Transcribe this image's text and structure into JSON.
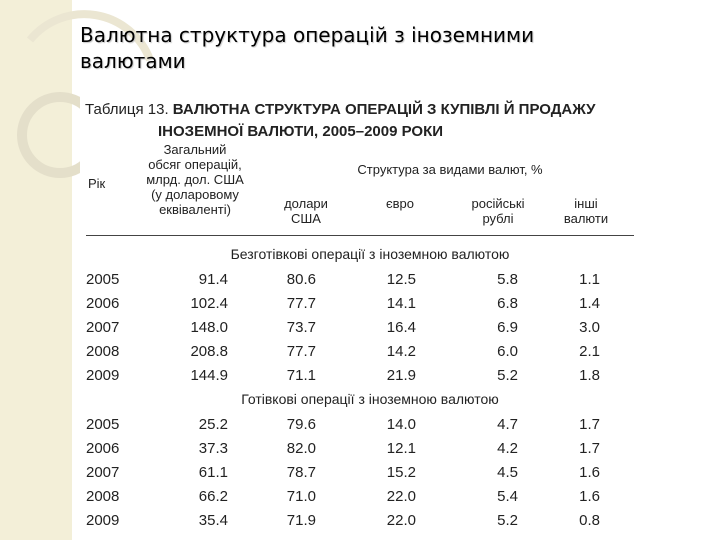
{
  "slide": {
    "title_lines": [
      "Валютна структура операцій з іноземними",
      "валютами"
    ]
  },
  "table": {
    "label": "Таблиця 13.",
    "caption_lines": [
      "ВАЛЮТНА СТРУКТУРА ОПЕРАЦІЙ З КУПІВЛІ Й ПРОДАЖУ",
      "ІНОЗЕМНОЇ ВАЛЮТИ, 2005–2009 РОКИ"
    ],
    "header": {
      "year": "Рік",
      "total_lines": [
        "Загальний",
        "обсяг операцій,",
        "млрд. дол. США",
        "(у доларовому",
        "еквіваленті)"
      ],
      "structure": "Структура за видами валют, %",
      "usd_lines": [
        "долари",
        "США"
      ],
      "eur": "євро",
      "rub_lines": [
        "російські",
        "рублі"
      ],
      "other_lines": [
        "інші",
        "валюти"
      ]
    },
    "sections": [
      {
        "title": "Безготівкові операції з іноземною валютою",
        "rows": [
          [
            "2005",
            "91.4",
            "80.6",
            "12.5",
            "5.8",
            "1.1"
          ],
          [
            "2006",
            "102.4",
            "77.7",
            "14.1",
            "6.8",
            "1.4"
          ],
          [
            "2007",
            "148.0",
            "73.7",
            "16.4",
            "6.9",
            "3.0"
          ],
          [
            "2008",
            "208.8",
            "77.7",
            "14.2",
            "6.0",
            "2.1"
          ],
          [
            "2009",
            "144.9",
            "71.1",
            "21.9",
            "5.2",
            "1.8"
          ]
        ]
      },
      {
        "title": "Готівкові операції з іноземною валютою",
        "rows": [
          [
            "2005",
            "25.2",
            "79.6",
            "14.0",
            "4.7",
            "1.7"
          ],
          [
            "2006",
            "37.3",
            "82.0",
            "12.1",
            "4.2",
            "1.7"
          ],
          [
            "2007",
            "61.1",
            "78.7",
            "15.2",
            "4.5",
            "1.6"
          ],
          [
            "2008",
            "66.2",
            "71.0",
            "22.0",
            "5.4",
            "1.6"
          ],
          [
            "2009",
            "35.4",
            "71.9",
            "22.0",
            "5.2",
            "0.8"
          ]
        ]
      }
    ]
  },
  "colors": {
    "left_band": "#f3efd8",
    "decor_arcs": "#e6e1cc"
  }
}
